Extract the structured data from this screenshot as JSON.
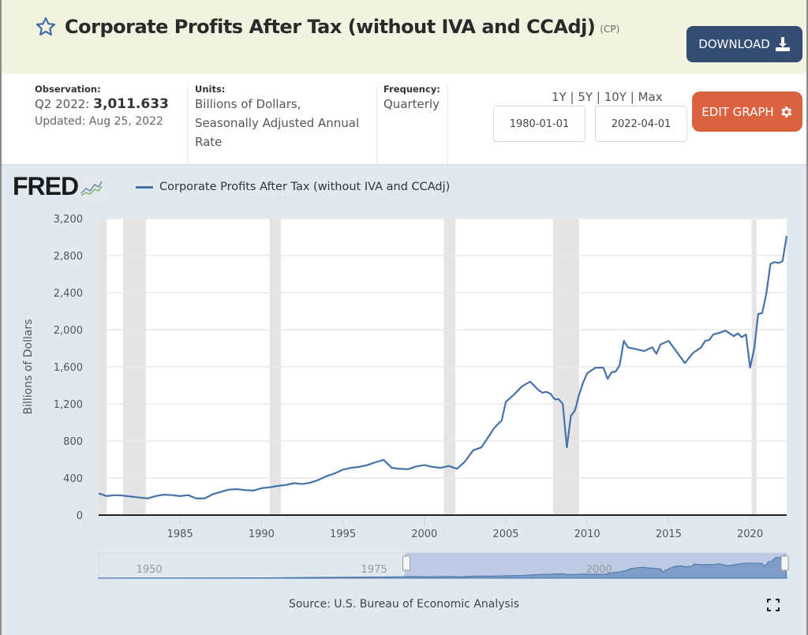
{
  "header": {
    "title": "Corporate Profits After Tax (without IVA and CCAdj)",
    "series_id": "(CP)",
    "download_label": "DOWNLOAD"
  },
  "meta": {
    "observation_label": "Observation:",
    "observation_period": "Q2 2022:",
    "observation_value": "3,011.633",
    "updated": "Updated: Aug 25, 2022",
    "units_label": "Units:",
    "units_line1": "Billions of Dollars,",
    "units_line2": "Seasonally Adjusted Annual",
    "units_line3": "Rate",
    "frequency_label": "Frequency:",
    "frequency_value": "Quarterly"
  },
  "controls": {
    "range_1y": "1Y",
    "range_5y": "5Y",
    "range_10y": "10Y",
    "range_max": "Max",
    "sep": "|",
    "start_date": "1980-01-01",
    "end_date": "2022-04-01",
    "edit_graph_label": "EDIT GRAPH"
  },
  "colors": {
    "header_bg": "#f1f3df",
    "download_bg": "#334d73",
    "edit_bg": "#d9623f",
    "line": "#4572a7",
    "recession": "#e4e4e4",
    "chart_bg": "#e1e9f0"
  },
  "footer": {
    "source": "Source: U.S. Bureau of Economic Analysis"
  },
  "navigator": {
    "labels": [
      "1950",
      "1975",
      "2000"
    ],
    "selected_start_year": 1980,
    "selected_end_year": 2022.5
  },
  "chart_data": {
    "type": "line",
    "title": "",
    "legend": [
      "Corporate Profits After Tax (without IVA and CCAdj)"
    ],
    "legend_position": "top-left",
    "xlabel": "",
    "ylabel": "Billions of Dollars",
    "xlim": [
      1980.0,
      2022.25
    ],
    "ylim": [
      0,
      3200
    ],
    "yticks": [
      0,
      400,
      800,
      1200,
      1600,
      2000,
      2400,
      2800,
      3200
    ],
    "ytick_labels": [
      "0",
      "400",
      "800",
      "1,200",
      "1,600",
      "2,000",
      "2,400",
      "2,800",
      "3,200"
    ],
    "xticks": [
      1985,
      1990,
      1995,
      2000,
      2005,
      2010,
      2015,
      2020
    ],
    "xtick_labels": [
      "1985",
      "1990",
      "1995",
      "2000",
      "2005",
      "2010",
      "2015",
      "2020"
    ],
    "grid": true,
    "recessions": [
      [
        1980.0,
        1980.5
      ],
      [
        1981.5,
        1982.9
      ],
      [
        1990.5,
        1991.2
      ],
      [
        2001.2,
        2001.9
      ],
      [
        2007.9,
        2009.5
      ],
      [
        2020.1,
        2020.4
      ]
    ],
    "series": [
      {
        "name": "Corporate Profits After Tax (without IVA and CCAdj)",
        "x": [
          1980.0,
          1980.5,
          1981.0,
          1981.5,
          1982.0,
          1982.5,
          1983.0,
          1983.5,
          1984.0,
          1984.5,
          1985.0,
          1985.5,
          1986.0,
          1986.5,
          1987.0,
          1987.5,
          1988.0,
          1988.5,
          1989.0,
          1989.5,
          1990.0,
          1990.5,
          1991.0,
          1991.5,
          1992.0,
          1992.5,
          1993.0,
          1993.5,
          1994.0,
          1994.5,
          1995.0,
          1995.5,
          1996.0,
          1996.5,
          1997.0,
          1997.5,
          1998.0,
          1998.5,
          1999.0,
          1999.5,
          2000.0,
          2000.5,
          2001.0,
          2001.5,
          2002.0,
          2002.5,
          2003.0,
          2003.5,
          2004.0,
          2004.25,
          2004.5,
          2004.75,
          2005.0,
          2005.5,
          2006.0,
          2006.5,
          2007.0,
          2007.25,
          2007.5,
          2007.75,
          2008.0,
          2008.25,
          2008.5,
          2008.75,
          2009.0,
          2009.25,
          2009.5,
          2009.75,
          2010.0,
          2010.5,
          2011.0,
          2011.25,
          2011.5,
          2011.75,
          2012.0,
          2012.25,
          2012.5,
          2013.0,
          2013.5,
          2014.0,
          2014.25,
          2014.5,
          2015.0,
          2015.25,
          2015.5,
          2016.0,
          2016.5,
          2017.0,
          2017.25,
          2017.5,
          2017.75,
          2018.0,
          2018.5,
          2019.0,
          2019.25,
          2019.5,
          2019.75,
          2020.0,
          2020.25,
          2020.5,
          2020.75,
          2021.0,
          2021.25,
          2021.5,
          2021.75,
          2022.0,
          2022.25
        ],
        "values": [
          235,
          205,
          215,
          210,
          200,
          190,
          180,
          205,
          220,
          215,
          205,
          215,
          180,
          180,
          225,
          250,
          275,
          280,
          270,
          265,
          290,
          300,
          315,
          325,
          345,
          335,
          350,
          380,
          420,
          450,
          490,
          510,
          520,
          540,
          570,
          595,
          510,
          500,
          495,
          525,
          540,
          520,
          510,
          530,
          500,
          580,
          700,
          730,
          860,
          930,
          980,
          1020,
          1220,
          1300,
          1390,
          1440,
          1350,
          1320,
          1330,
          1310,
          1250,
          1250,
          1200,
          730,
          1070,
          1130,
          1300,
          1430,
          1530,
          1590,
          1590,
          1470,
          1540,
          1550,
          1620,
          1880,
          1810,
          1790,
          1770,
          1810,
          1740,
          1840,
          1880,
          1820,
          1760,
          1640,
          1750,
          1810,
          1880,
          1890,
          1950,
          1960,
          1990,
          1930,
          1960,
          1920,
          1950,
          1590,
          1790,
          2170,
          2180,
          2390,
          2710,
          2730,
          2720,
          2740,
          3012
        ]
      }
    ]
  }
}
